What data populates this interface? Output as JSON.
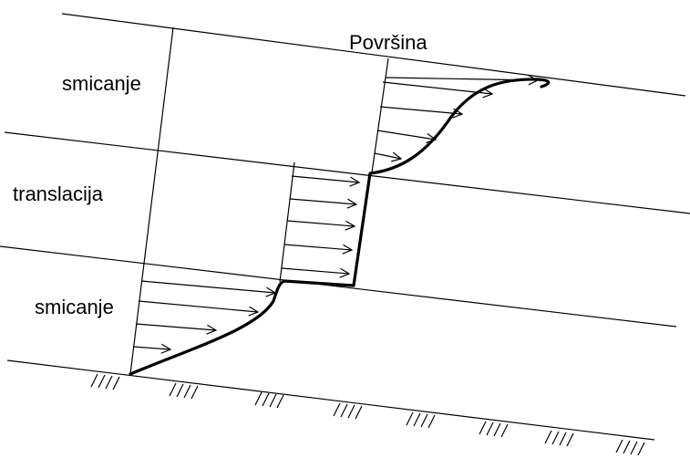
{
  "labels": {
    "surface": "Površina",
    "zone_top": "smicanje",
    "zone_middle": "translacija",
    "zone_bottom": "smicanje"
  },
  "colors": {
    "line": "#000000",
    "background": "#ffffff"
  }
}
